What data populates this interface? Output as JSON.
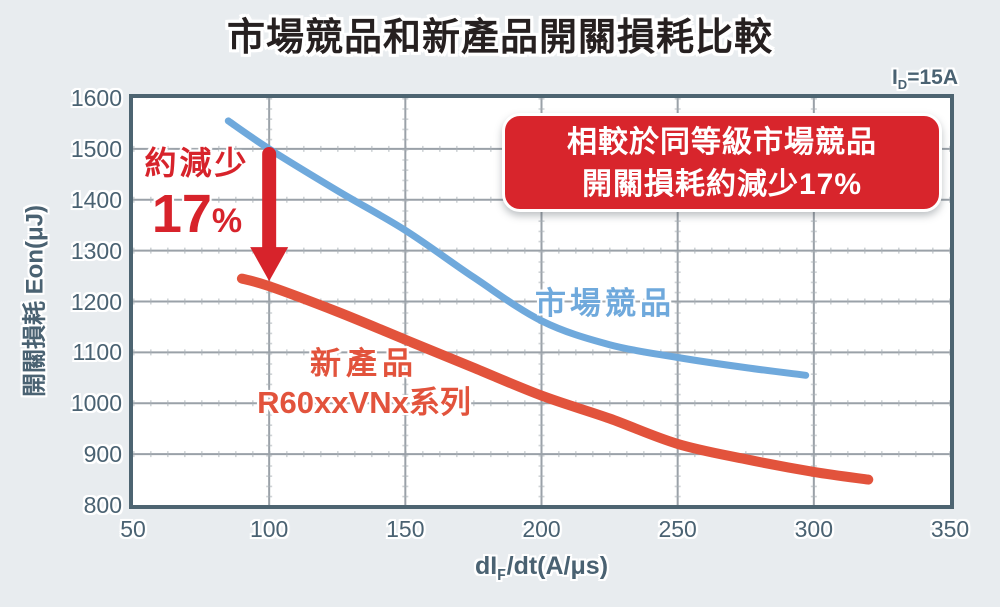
{
  "title": "市場競品和新產品開關損耗比較",
  "condition": {
    "prefix": "I",
    "sub": "D",
    "suffix": "=15A"
  },
  "colors": {
    "bg": "#E8ECEF",
    "plot-bg": "#FFFFFF",
    "frame": "#4D6471",
    "grid": "#9AA1A8",
    "grid-minor": "#ABB2B8",
    "axis-text": "#4A6272",
    "title-text": "#262020",
    "accent-red": "#D7232B",
    "blue-line": "#6FA9DC",
    "red-line": "#E2533C",
    "badge-bg": "#D8252C",
    "badge-text": "#FFFFFF"
  },
  "chart_data": {
    "type": "line",
    "title": "市場競品和新產品開關損耗比較",
    "ylabel": "開關損耗 Eon(μJ)",
    "xlabel_parts": {
      "prefix": "dI",
      "sub": "F",
      "suffix": "/dt(A/μs)"
    },
    "xlim": [
      50,
      350
    ],
    "ylim": [
      800,
      1600
    ],
    "xticks": [
      50,
      100,
      150,
      200,
      250,
      300,
      350
    ],
    "yticks": [
      800,
      900,
      1000,
      1100,
      1200,
      1300,
      1400,
      1500,
      1600
    ],
    "grid": true,
    "legend_position": "inline-labels",
    "series": [
      {
        "name": "市場競品",
        "color": "#6FA9DC",
        "stroke_width": 7,
        "points": [
          [
            85,
            1555
          ],
          [
            100,
            1500
          ],
          [
            125,
            1418
          ],
          [
            150,
            1340
          ],
          [
            175,
            1248
          ],
          [
            200,
            1162
          ],
          [
            225,
            1115
          ],
          [
            250,
            1090
          ],
          [
            275,
            1070
          ],
          [
            297,
            1055
          ]
        ]
      },
      {
        "name": "新產品 R60xxVNx系列",
        "color": "#E2533C",
        "stroke_width": 10,
        "points": [
          [
            90,
            1245
          ],
          [
            100,
            1230
          ],
          [
            125,
            1180
          ],
          [
            150,
            1125
          ],
          [
            175,
            1070
          ],
          [
            200,
            1015
          ],
          [
            225,
            970
          ],
          [
            250,
            920
          ],
          [
            275,
            890
          ],
          [
            300,
            865
          ],
          [
            320,
            850
          ]
        ]
      }
    ]
  },
  "annotations": {
    "reduction_line1": "約減少",
    "reduction_value": "17",
    "reduction_unit": "%",
    "arrow": {
      "x": 100,
      "y_from": 1490,
      "y_to": 1240
    },
    "series_label_blue": "市場競品",
    "series_label_red_line1": "新產品",
    "series_label_red_line2": "R60xxVNx系列",
    "badge_line1": "相較於同等級市場競品",
    "badge_line2": "開關損耗約減少17%"
  }
}
